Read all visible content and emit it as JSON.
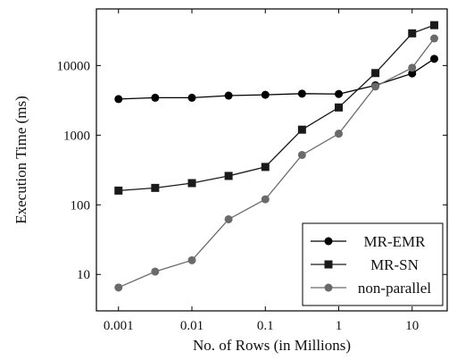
{
  "chart_data": {
    "type": "line",
    "xlabel": "No. of Rows (in Millions)",
    "ylabel": "Execution Time (ms)",
    "xscale": "log",
    "yscale": "log",
    "xlim": [
      0.0005,
      30
    ],
    "ylim": [
      3,
      65000
    ],
    "x_ticks": [
      {
        "value": 0.001,
        "label": "0.001"
      },
      {
        "value": 0.01,
        "label": "0.01"
      },
      {
        "value": 0.1,
        "label": "0.1"
      },
      {
        "value": 1,
        "label": "1"
      },
      {
        "value": 10,
        "label": "10"
      }
    ],
    "y_ticks": [
      {
        "value": 10,
        "label": "10"
      },
      {
        "value": 100,
        "label": "100"
      },
      {
        "value": 1000,
        "label": "1000"
      },
      {
        "value": 10000,
        "label": "10000"
      }
    ],
    "x": [
      0.001,
      0.00316,
      0.01,
      0.0316,
      0.1,
      0.316,
      1,
      3.16,
      10,
      20
    ],
    "series": [
      {
        "name": "MR-EMR",
        "marker": "circle",
        "color": "#000000",
        "values": [
          3300,
          3450,
          3450,
          3700,
          3800,
          3950,
          3900,
          5200,
          7700,
          12500
        ]
      },
      {
        "name": "MR-SN",
        "marker": "square",
        "color": "#1a1a1a",
        "values": [
          160,
          175,
          205,
          260,
          350,
          1200,
          2500,
          7800,
          29000,
          38000
        ]
      },
      {
        "name": "non-parallel",
        "marker": "circle",
        "color": "#6a6a6a",
        "values": [
          6.5,
          11,
          16,
          62,
          120,
          520,
          1050,
          5000,
          9300,
          24500
        ]
      }
    ],
    "legend_position": "bottom-right",
    "grid": false
  }
}
